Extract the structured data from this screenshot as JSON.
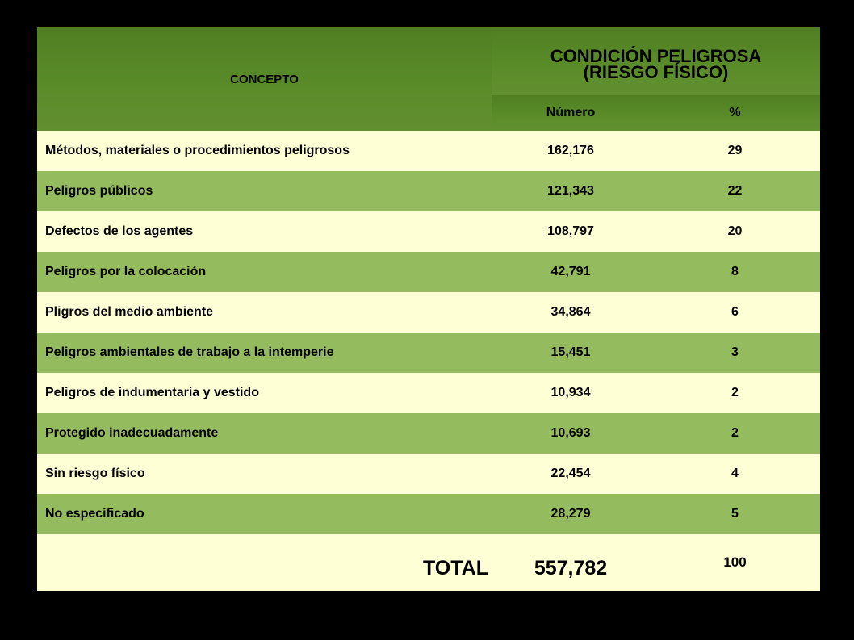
{
  "table": {
    "header": {
      "concept": "CONCEPTO",
      "group_line1": "CONDICIÓN PELIGROSA",
      "group_line2": "(RIESGO FÍSICO)",
      "number": "Número",
      "percent": "%"
    },
    "rows": [
      {
        "concept": "Métodos, materiales o procedimientos peligrosos",
        "number": "162,176",
        "percent": "29"
      },
      {
        "concept": "Peligros públicos",
        "number": "121,343",
        "percent": "22"
      },
      {
        "concept": "Defectos de los agentes",
        "number": "108,797",
        "percent": "20"
      },
      {
        "concept": "Peligros por la colocación",
        "number": "42,791",
        "percent": "8"
      },
      {
        "concept": "Pligros del medio ambiente",
        "number": "34,864",
        "percent": "6"
      },
      {
        "concept": "Peligros ambientales de trabajo a la intemperie",
        "number": "15,451",
        "percent": "3"
      },
      {
        "concept": "Peligros de indumentaria y vestido",
        "number": "10,934",
        "percent": "2"
      },
      {
        "concept": "Protegido inadecuadamente",
        "number": "10,693",
        "percent": "2"
      },
      {
        "concept": "Sin riesgo físico",
        "number": "22,454",
        "percent": "4"
      },
      {
        "concept": "No especificado",
        "number": "28,279",
        "percent": "5"
      }
    ],
    "total": {
      "label": "TOTAL",
      "number": "557,782",
      "percent": "100"
    }
  },
  "colors": {
    "header_green": "#5b8c2a",
    "row_light": "#ffffd6",
    "row_dark": "#95bb5f",
    "background": "#000000"
  }
}
